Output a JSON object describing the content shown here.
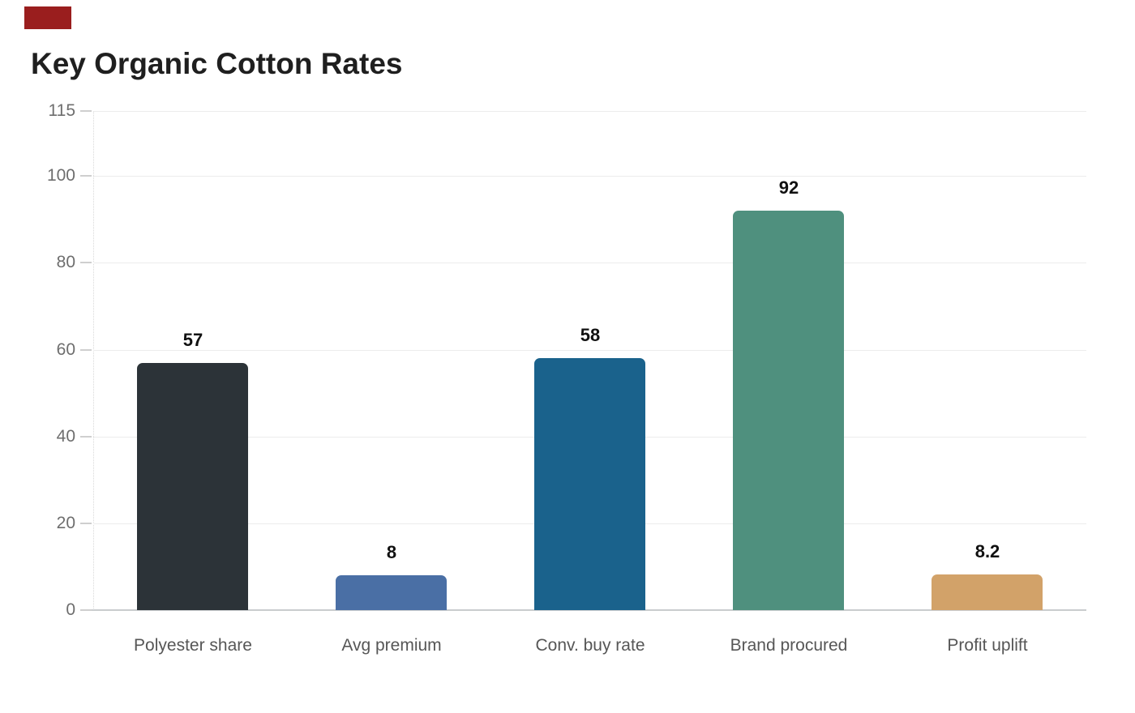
{
  "chart_data": {
    "type": "bar",
    "title": "Key Organic Cotton Rates",
    "categories": [
      "Polyester share",
      "Avg premium",
      "Conv. buy rate",
      "Brand procured",
      "Profit uplift"
    ],
    "values": [
      57,
      8,
      58,
      92,
      8.2
    ],
    "value_labels": [
      "57",
      "8",
      "58",
      "92",
      "8.2"
    ],
    "series_colors": [
      "#2c3338",
      "#4a6fa5",
      "#1a628c",
      "#4f907e",
      "#d2a269"
    ],
    "yticks": [
      0,
      20,
      40,
      60,
      80,
      100,
      115
    ],
    "ytick_labels": [
      "0",
      "20",
      "40",
      "60",
      "80",
      "100",
      "115"
    ],
    "ylim": [
      0,
      115
    ],
    "grid": true,
    "legend": "none",
    "xlabel": "",
    "ylabel": ""
  },
  "colors": {
    "background": "#ffffff",
    "grid_line": "#ececec",
    "axis_line": "#c9ccce",
    "tick_mark": "#cfcfcf",
    "axis_dotted": "#d9d9d9",
    "tick_text": "#6e6e6e",
    "category_text": "#565656",
    "value_text": "#111111",
    "title_text": "#1f1f1f",
    "accent_rect": "#9a1e1e"
  }
}
